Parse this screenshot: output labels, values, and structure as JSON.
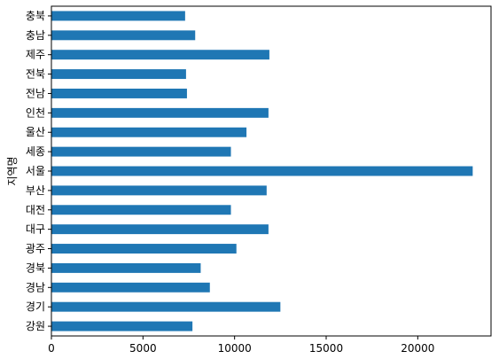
{
  "chart_data": {
    "type": "bar",
    "orientation": "horizontal",
    "ylabel": "지역명",
    "xlabel": "",
    "xlim": [
      0,
      24000
    ],
    "xticks": [
      0,
      5000,
      10000,
      15000,
      20000
    ],
    "xtick_labels": [
      "0",
      "5000",
      "10000",
      "15000",
      "20000"
    ],
    "grid": false,
    "bar_color": "#1f77b4",
    "categories": [
      "충북",
      "충남",
      "제주",
      "전북",
      "전남",
      "인천",
      "울산",
      "세종",
      "서울",
      "부산",
      "대전",
      "대구",
      "광주",
      "경북",
      "경남",
      "경기",
      "강원"
    ],
    "values": [
      7300,
      7850,
      11900,
      7350,
      7400,
      11850,
      10650,
      9800,
      23000,
      11750,
      9800,
      11850,
      10100,
      8150,
      8650,
      12500,
      7700
    ]
  }
}
